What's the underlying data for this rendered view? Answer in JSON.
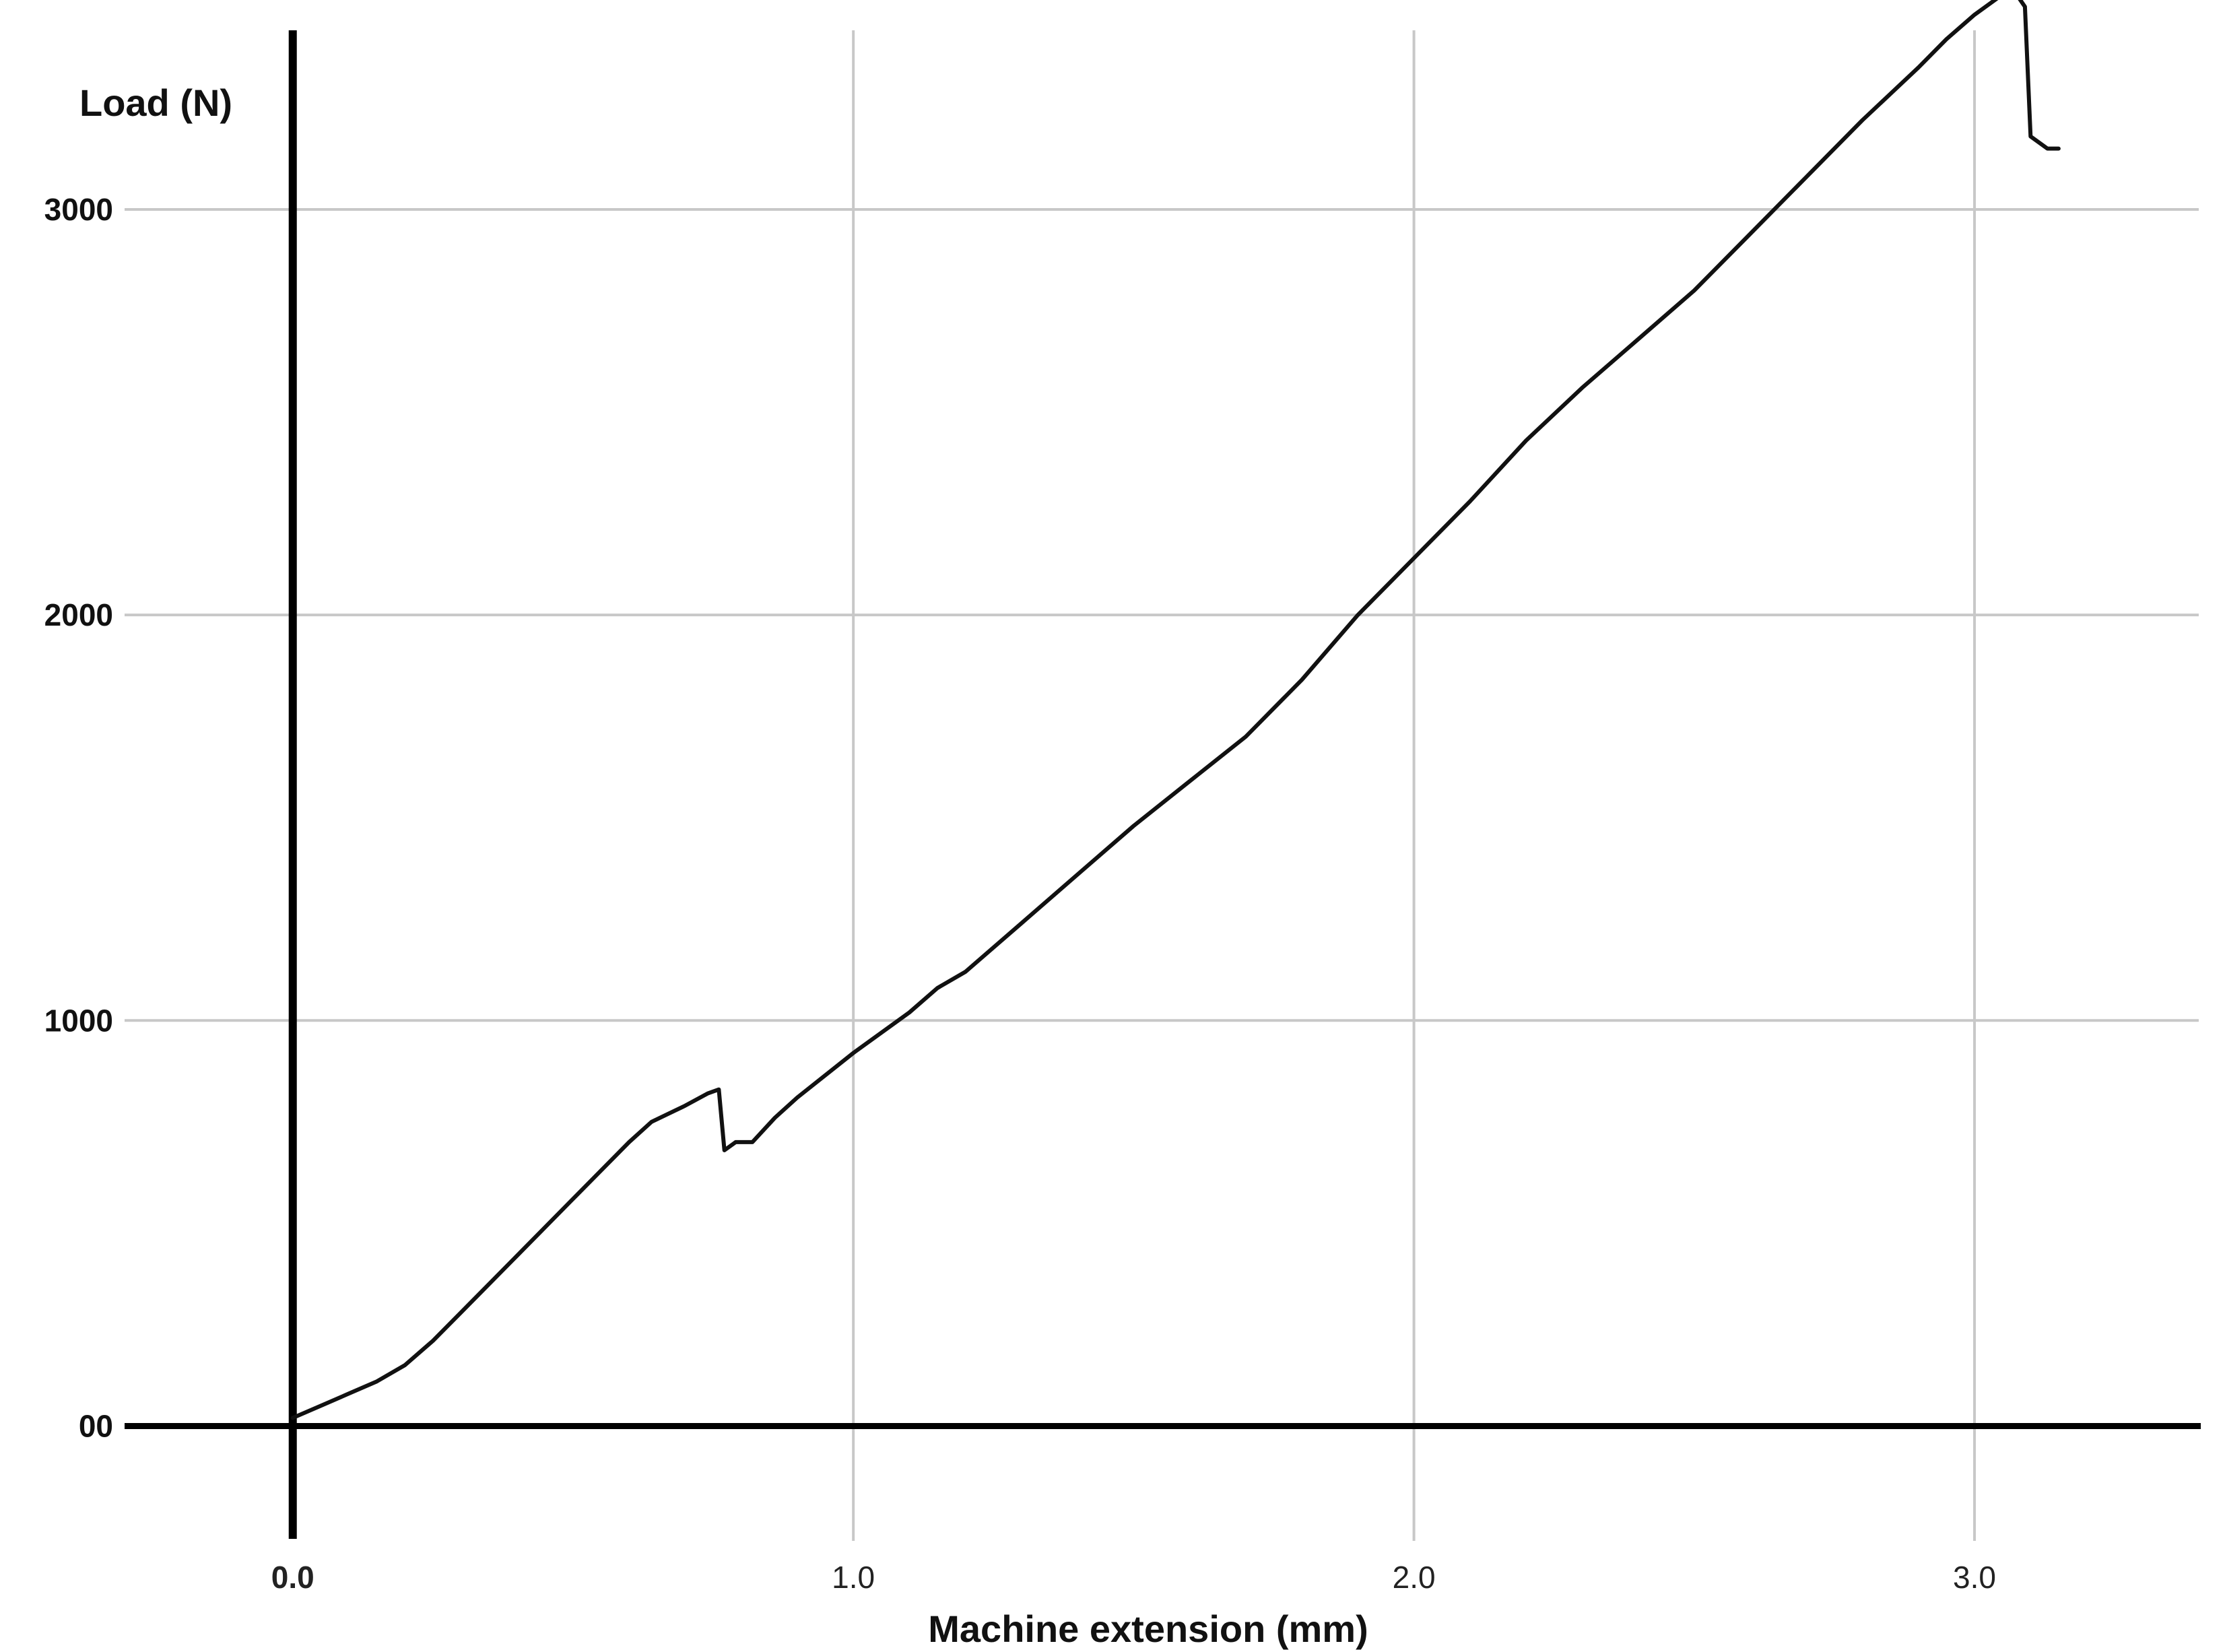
{
  "chart_data": {
    "type": "line",
    "title": "",
    "xlabel": "Machine extension (mm)",
    "ylabel": "Load (N)",
    "xlim": [
      -0.3,
      3.4
    ],
    "ylim": [
      -250,
      3450
    ],
    "x_ticks": [
      {
        "value": 0,
        "label": "0.0"
      },
      {
        "value": 1,
        "label": "1.0"
      },
      {
        "value": 2,
        "label": "2.0"
      },
      {
        "value": 3,
        "label": "3.0"
      }
    ],
    "y_ticks": [
      {
        "value": 0,
        "label": "00"
      },
      {
        "value": 1000,
        "label": "1000"
      },
      {
        "value": 2000,
        "label": "2000"
      },
      {
        "value": 3000,
        "label": "3000"
      }
    ],
    "grid": true,
    "colors": {
      "line": "#111111",
      "grid": "#c8c8c8",
      "axis": "#000000"
    },
    "series": [
      {
        "name": "",
        "x": [
          0.0,
          0.05,
          0.1,
          0.15,
          0.2,
          0.25,
          0.3,
          0.4,
          0.5,
          0.6,
          0.64,
          0.7,
          0.74,
          0.76,
          0.77,
          0.79,
          0.82,
          0.86,
          0.9,
          1.0,
          1.1,
          1.15,
          1.2,
          1.3,
          1.4,
          1.5,
          1.6,
          1.7,
          1.8,
          1.9,
          2.0,
          2.1,
          2.2,
          2.3,
          2.4,
          2.5,
          2.6,
          2.7,
          2.8,
          2.9,
          2.95,
          3.0,
          3.05,
          3.07,
          3.09,
          3.1,
          3.13,
          3.15
        ],
        "y": [
          20,
          50,
          80,
          110,
          150,
          210,
          280,
          420,
          560,
          700,
          750,
          790,
          820,
          830,
          680,
          700,
          700,
          760,
          810,
          920,
          1020,
          1080,
          1120,
          1240,
          1360,
          1480,
          1590,
          1700,
          1840,
          2000,
          2140,
          2280,
          2430,
          2560,
          2680,
          2800,
          2940,
          3080,
          3220,
          3350,
          3420,
          3480,
          3530,
          3540,
          3500,
          3180,
          3150,
          3150
        ]
      }
    ]
  }
}
